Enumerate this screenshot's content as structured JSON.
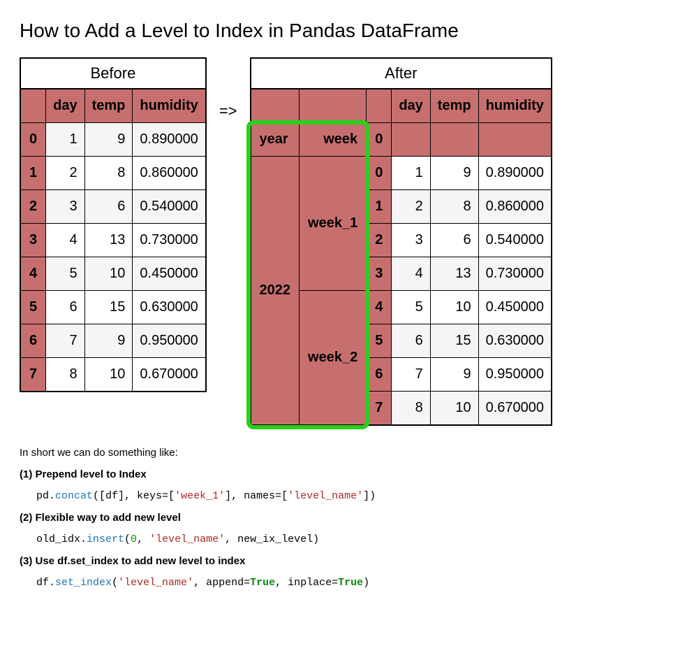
{
  "title": "How to Add a Level to Index in Pandas DataFrame",
  "arrow": "=>",
  "colors": {
    "index_bg": "#c76f6f",
    "highlight_border": "#2bce1a",
    "zebra": "#f5f5f5",
    "background": "#ffffff"
  },
  "before": {
    "caption": "Before",
    "columns": [
      "day",
      "temp",
      "humidity"
    ],
    "rows": [
      {
        "idx": "0",
        "day": 1,
        "temp": 9,
        "humidity": "0.890000"
      },
      {
        "idx": "1",
        "day": 2,
        "temp": 8,
        "humidity": "0.860000"
      },
      {
        "idx": "2",
        "day": 3,
        "temp": 6,
        "humidity": "0.540000"
      },
      {
        "idx": "3",
        "day": 4,
        "temp": 13,
        "humidity": "0.730000"
      },
      {
        "idx": "4",
        "day": 5,
        "temp": 10,
        "humidity": "0.450000"
      },
      {
        "idx": "5",
        "day": 6,
        "temp": 15,
        "humidity": "0.630000"
      },
      {
        "idx": "6",
        "day": 7,
        "temp": 9,
        "humidity": "0.950000"
      },
      {
        "idx": "7",
        "day": 8,
        "temp": 10,
        "humidity": "0.670000"
      }
    ]
  },
  "after": {
    "caption": "After",
    "columns": [
      "day",
      "temp",
      "humidity"
    ],
    "index_names": [
      "year",
      "week",
      "0"
    ],
    "year": "2022",
    "weeks": [
      "week_1",
      "week_2"
    ],
    "rows": [
      {
        "idx": "0",
        "day": 1,
        "temp": 9,
        "humidity": "0.890000"
      },
      {
        "idx": "1",
        "day": 2,
        "temp": 8,
        "humidity": "0.860000"
      },
      {
        "idx": "2",
        "day": 3,
        "temp": 6,
        "humidity": "0.540000"
      },
      {
        "idx": "3",
        "day": 4,
        "temp": 13,
        "humidity": "0.730000"
      },
      {
        "idx": "4",
        "day": 5,
        "temp": 10,
        "humidity": "0.450000"
      },
      {
        "idx": "5",
        "day": 6,
        "temp": 15,
        "humidity": "0.630000"
      },
      {
        "idx": "6",
        "day": 7,
        "temp": 9,
        "humidity": "0.950000"
      },
      {
        "idx": "7",
        "day": 8,
        "temp": 10,
        "humidity": "0.670000"
      }
    ]
  },
  "notes": {
    "intro": "In short we can do something like:",
    "items": [
      {
        "heading": "(1) Prepend level to Index",
        "code_tokens": [
          {
            "t": "pd."
          },
          {
            "t": "concat",
            "c": "tk-fn"
          },
          {
            "t": "([df], keys=["
          },
          {
            "t": "'week_1'",
            "c": "tk-str"
          },
          {
            "t": "], names=["
          },
          {
            "t": "'level_name'",
            "c": "tk-str"
          },
          {
            "t": "])"
          }
        ]
      },
      {
        "heading": "(2) Flexible way to add new level",
        "code_tokens": [
          {
            "t": "old_idx."
          },
          {
            "t": "insert",
            "c": "tk-fn"
          },
          {
            "t": "("
          },
          {
            "t": "0",
            "c": "tk-num"
          },
          {
            "t": ", "
          },
          {
            "t": "'level_name'",
            "c": "tk-str"
          },
          {
            "t": ", new_ix_level)"
          }
        ]
      },
      {
        "heading": "(3) Use df.set_index to add new level to index",
        "code_tokens": [
          {
            "t": "df."
          },
          {
            "t": "set_index",
            "c": "tk-fn"
          },
          {
            "t": "("
          },
          {
            "t": "'level_name'",
            "c": "tk-str"
          },
          {
            "t": ", append="
          },
          {
            "t": "True",
            "c": "tk-kw"
          },
          {
            "t": ", inplace="
          },
          {
            "t": "True",
            "c": "tk-kw"
          },
          {
            "t": ")"
          }
        ]
      }
    ]
  }
}
